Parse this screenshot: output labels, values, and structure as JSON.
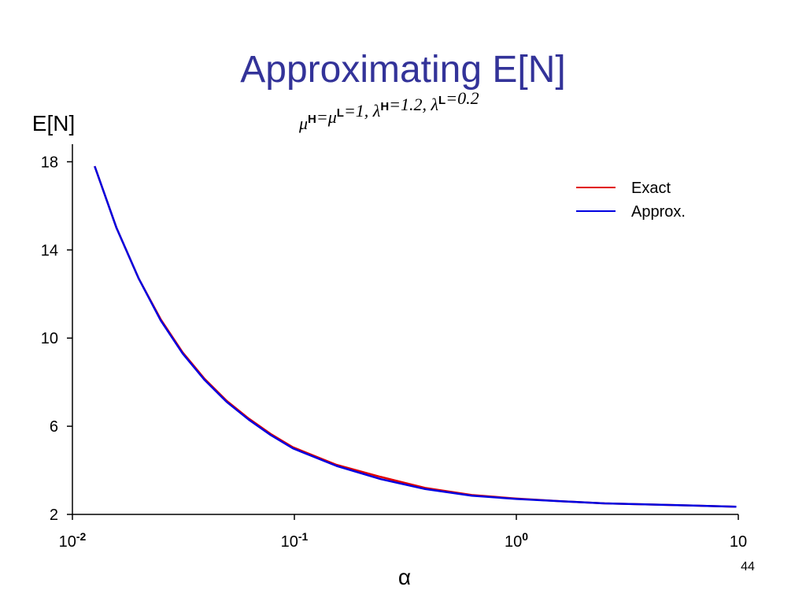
{
  "chart_data": {
    "type": "line",
    "title": "Approximating E[N]",
    "subtitle": [
      {
        "text": "μ",
        "sup": "H"
      },
      {
        "text": "=μ",
        "sup": "L"
      },
      {
        "text": "=1, λ",
        "sup": "H"
      },
      {
        "text": "=1.2, λ",
        "sup": "L"
      },
      {
        "text": "=0.2"
      }
    ],
    "y_label": "E[N]",
    "x_label": "α",
    "page_number": "44",
    "xscale": "log",
    "xlim": [
      0.01,
      10
    ],
    "xticks": [
      {
        "value": 0.01,
        "label": "10",
        "exponent": "-2"
      },
      {
        "value": 0.1,
        "label": "10",
        "exponent": "-1"
      },
      {
        "value": 1,
        "label": "10",
        "exponent": "0"
      },
      10
    ],
    "ylim": [
      2,
      18.8
    ],
    "yticks": [
      2,
      6,
      10,
      14,
      18
    ],
    "legend": "upper right",
    "x": [
      0.0126,
      0.0158,
      0.0199,
      0.025,
      0.0314,
      0.0394,
      0.0496,
      0.0623,
      0.0783,
      0.0984,
      0.155,
      0.245,
      0.388,
      0.63,
      1,
      1.58,
      2.5,
      3.96,
      6.26,
      9.8
    ],
    "series": [
      {
        "name": "Exact",
        "color": "#e00000",
        "values": [
          17.8,
          15.0,
          12.7,
          10.85,
          9.35,
          8.15,
          7.15,
          6.35,
          5.65,
          5.05,
          4.25,
          3.7,
          3.2,
          2.88,
          2.72,
          2.6,
          2.5,
          2.45,
          2.4,
          2.35
        ]
      },
      {
        "name": "Approx.",
        "color": "#0000e0",
        "values": [
          17.8,
          15.0,
          12.7,
          10.8,
          9.3,
          8.1,
          7.1,
          6.3,
          5.6,
          5.0,
          4.2,
          3.6,
          3.15,
          2.85,
          2.7,
          2.6,
          2.5,
          2.45,
          2.4,
          2.35
        ]
      }
    ]
  }
}
